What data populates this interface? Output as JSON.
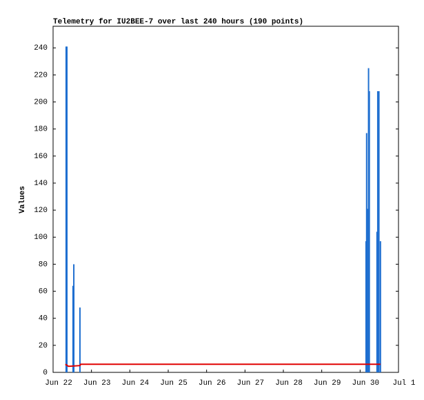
{
  "chart_data": {
    "type": "impulse",
    "title": "Telemetry for IU2BEE-7 over last 240 hours (190 points)",
    "y_label": "Values",
    "xlim": [
      0,
      9
    ],
    "xticks": [
      {
        "value": 0,
        "label": "Jun 22"
      },
      {
        "value": 1,
        "label": "Jun 23"
      },
      {
        "value": 2,
        "label": "Jun 24"
      },
      {
        "value": 3,
        "label": "Jun 25"
      },
      {
        "value": 4,
        "label": "Jun 26"
      },
      {
        "value": 5,
        "label": "Jun 27"
      },
      {
        "value": 6,
        "label": "Jun 28"
      },
      {
        "value": 7,
        "label": "Jun 29"
      },
      {
        "value": 8,
        "label": "Jun 30"
      },
      {
        "value": 9,
        "label": "Jul 1"
      }
    ],
    "ylim": [
      0,
      256
    ],
    "yticks": [
      0,
      20,
      40,
      60,
      80,
      100,
      120,
      140,
      160,
      180,
      200,
      220,
      240
    ],
    "series": [
      {
        "kind": "impulse",
        "color": "#1f6fd0",
        "x": [
          0.34,
          0.36,
          0.52,
          0.54,
          0.7,
          8.155,
          8.17,
          8.19,
          8.2,
          8.22,
          8.24,
          8.44,
          8.46,
          8.49,
          8.53
        ],
        "values": [
          241,
          241,
          64,
          80,
          48,
          97,
          177,
          121,
          24,
          225,
          208,
          104,
          208,
          208,
          97
        ]
      },
      {
        "kind": "line",
        "color": "#e00000",
        "x": [
          0.32,
          0.4,
          0.7,
          0.72,
          8.53
        ],
        "values": [
          6,
          4.5,
          5,
          6,
          6
        ]
      }
    ]
  }
}
